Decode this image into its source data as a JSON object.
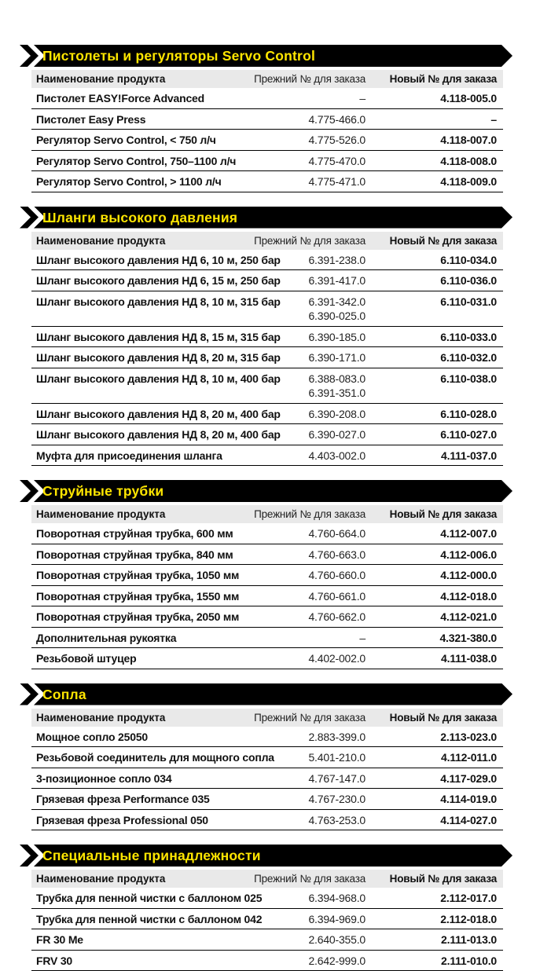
{
  "document": {
    "columns": {
      "name": "Наименование продукта",
      "old": "Прежний № для заказа",
      "new": "Новый № для заказа"
    },
    "sections": [
      {
        "title": "Пистолеты и регуляторы Servo Control",
        "rows": [
          {
            "name": "Пистолет EASY!Force Advanced",
            "old": [
              "–"
            ],
            "new": "4.118-005.0"
          },
          {
            "name": "Пистолет Easy Press",
            "old": [
              "4.775-466.0"
            ],
            "new": "–"
          },
          {
            "name": "Регулятор Servo Control, < 750 л/ч",
            "old": [
              "4.775-526.0"
            ],
            "new": "4.118-007.0"
          },
          {
            "name": "Регулятор Servo Control, 750–1100 л/ч",
            "old": [
              "4.775-470.0"
            ],
            "new": "4.118-008.0"
          },
          {
            "name": "Регулятор Servo Control, > 1100 л/ч",
            "old": [
              "4.775-471.0"
            ],
            "new": "4.118-009.0"
          }
        ]
      },
      {
        "title": "Шланги высокого давления",
        "rows": [
          {
            "name": "Шланг высокого давления НД 6, 10 м, 250 бар",
            "old": [
              "6.391-238.0"
            ],
            "new": "6.110-034.0"
          },
          {
            "name": "Шланг высокого давления НД 6, 15 м, 250 бар",
            "old": [
              "6.391-417.0"
            ],
            "new": "6.110-036.0"
          },
          {
            "name": "Шланг высокого давления НД 8, 10 м, 315 бар",
            "old": [
              "6.391-342.0",
              "6.390-025.0"
            ],
            "new": "6.110-031.0"
          },
          {
            "name": "Шланг высокого давления НД 8, 15 м, 315 бар",
            "old": [
              "6.390-185.0"
            ],
            "new": "6.110-033.0"
          },
          {
            "name": "Шланг высокого давления НД 8, 20 м, 315 бар",
            "old": [
              "6.390-171.0"
            ],
            "new": "6.110-032.0"
          },
          {
            "name": "Шланг высокого давления НД 8, 10 м, 400 бар",
            "old": [
              "6.388-083.0",
              "6.391-351.0"
            ],
            "new": "6.110-038.0"
          },
          {
            "name": "Шланг высокого давления НД 8, 20 м, 400 бар",
            "old": [
              "6.390-208.0"
            ],
            "new": "6.110-028.0"
          },
          {
            "name": "Шланг высокого давления НД 8, 20 м, 400 бар",
            "old": [
              "6.390-027.0"
            ],
            "new": "6.110-027.0"
          },
          {
            "name": "Муфта для присоединения шланга",
            "old": [
              "4.403-002.0"
            ],
            "new": "4.111-037.0"
          }
        ]
      },
      {
        "title": "Струйные трубки",
        "rows": [
          {
            "name": "Поворотная струйная трубка, 600 мм",
            "old": [
              "4.760-664.0"
            ],
            "new": "4.112-007.0"
          },
          {
            "name": "Поворотная струйная трубка, 840 мм",
            "old": [
              "4.760-663.0"
            ],
            "new": "4.112-006.0"
          },
          {
            "name": "Поворотная струйная трубка, 1050 мм",
            "old": [
              "4.760-660.0"
            ],
            "new": "4.112-000.0"
          },
          {
            "name": "Поворотная струйная трубка, 1550 мм",
            "old": [
              "4.760-661.0"
            ],
            "new": "4.112-018.0"
          },
          {
            "name": "Поворотная струйная трубка, 2050 мм",
            "old": [
              "4.760-662.0"
            ],
            "new": "4.112-021.0"
          },
          {
            "name": "Дополнительная рукоятка",
            "old": [
              "–"
            ],
            "new": "4.321-380.0"
          },
          {
            "name": "Резьбовой штуцер",
            "old": [
              "4.402-002.0"
            ],
            "new": "4.111-038.0"
          }
        ]
      },
      {
        "title": "Сопла",
        "rows": [
          {
            "name": "Мощное сопло 25050",
            "old": [
              "2.883-399.0"
            ],
            "new": "2.113-023.0"
          },
          {
            "name": "Резьбовой соединитель для мощного сопла",
            "old": [
              "5.401-210.0"
            ],
            "new": "4.112-011.0"
          },
          {
            "name": "3-позиционное сопло 034",
            "old": [
              "4.767-147.0"
            ],
            "new": "4.117-029.0"
          },
          {
            "name": "Грязевая фреза Performance 035",
            "old": [
              "4.767-230.0"
            ],
            "new": "4.114-019.0"
          },
          {
            "name": "Грязевая фреза Professional 050",
            "old": [
              "4.763-253.0"
            ],
            "new": "4.114-027.0"
          }
        ]
      },
      {
        "title": "Специальные принадлежности",
        "rows": [
          {
            "name": "Трубка для пенной чистки с баллоном 025",
            "old": [
              "6.394-968.0"
            ],
            "new": "2.112-017.0"
          },
          {
            "name": "Трубка для пенной чистки с баллоном 042",
            "old": [
              "6.394-969.0"
            ],
            "new": "2.112-018.0"
          },
          {
            "name": "FR 30 Me",
            "old": [
              "2.640-355.0"
            ],
            "new": "2.111-013.0"
          },
          {
            "name": "FRV 30",
            "old": [
              "2.642-999.0"
            ],
            "new": "2.111-010.0"
          }
        ]
      }
    ]
  },
  "colors": {
    "banner_bg": "#000000",
    "banner_text": "#ffe600",
    "header_bg": "#e9e9e9",
    "row_line": "#000000",
    "text": "#111111",
    "old_text": "#222222"
  }
}
